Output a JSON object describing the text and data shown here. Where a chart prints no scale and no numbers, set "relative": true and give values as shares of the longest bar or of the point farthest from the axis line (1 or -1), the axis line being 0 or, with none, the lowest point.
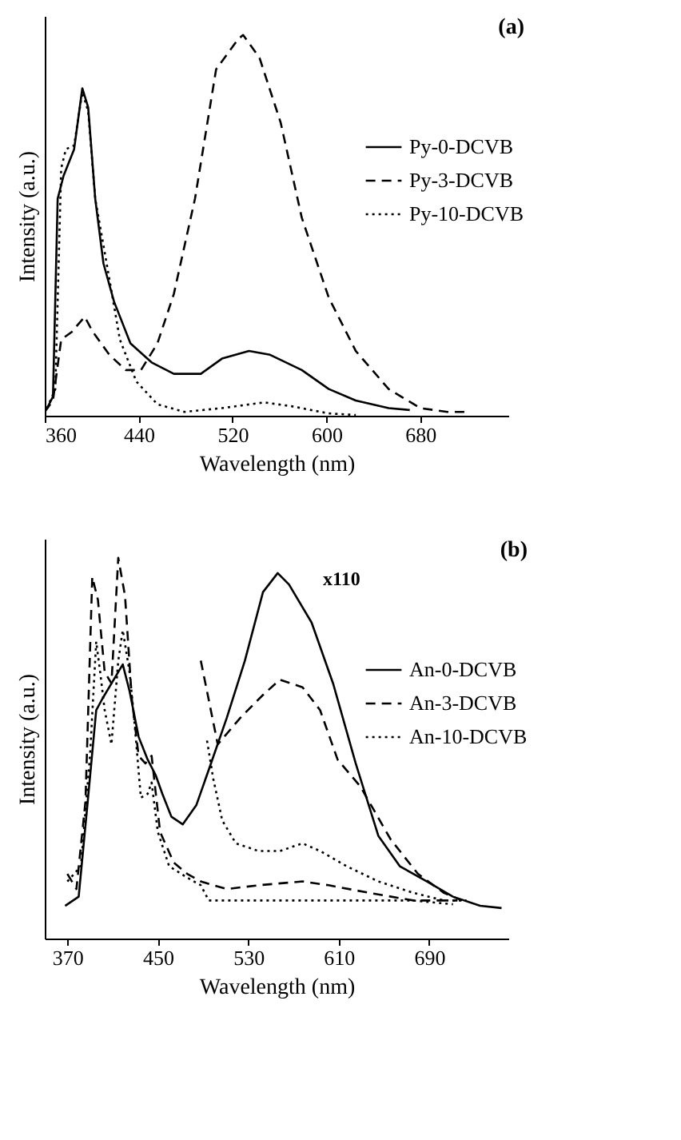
{
  "chart_data": [
    {
      "type": "line",
      "title": "(a)",
      "xlabel": "Wavelength (nm)",
      "ylabel": "Intensity (a.u.)",
      "relative": true,
      "xlim": [
        360,
        755
      ],
      "xticks": [
        360,
        440,
        520,
        600,
        680
      ],
      "grid": false,
      "legend": "right",
      "marker": "none",
      "series": [
        {
          "name": "Py-0-DCVB",
          "color": "#000000",
          "line_style": "solid",
          "x": [
            362,
            367,
            371,
            376,
            385,
            392,
            397,
            403,
            410,
            419,
            433,
            451,
            470,
            493,
            511,
            534,
            552,
            579,
            602,
            625,
            653,
            671
          ],
          "values": [
            0.02,
            0.05,
            0.57,
            0.63,
            0.7,
            0.86,
            0.81,
            0.57,
            0.4,
            0.3,
            0.19,
            0.14,
            0.11,
            0.11,
            0.15,
            0.17,
            0.16,
            0.12,
            0.07,
            0.04,
            0.02,
            0.015
          ]
        },
        {
          "name": "Py-3-DCVB",
          "color": "#000000",
          "line_style": "dashed",
          "x": [
            360,
            367,
            374,
            383,
            394,
            401,
            415,
            429,
            442,
            456,
            470,
            488,
            506,
            525,
            529,
            543,
            561,
            579,
            602,
            625,
            653,
            680,
            703,
            721
          ],
          "values": [
            0.01,
            0.04,
            0.2,
            0.22,
            0.26,
            0.22,
            0.16,
            0.12,
            0.12,
            0.19,
            0.32,
            0.57,
            0.91,
            0.99,
            1.0,
            0.94,
            0.77,
            0.52,
            0.31,
            0.17,
            0.07,
            0.02,
            0.01,
            0.01
          ]
        },
        {
          "name": "Py-10-DCVB",
          "color": "#000000",
          "line_style": "dotted",
          "x": [
            362,
            369,
            374,
            378,
            385,
            392,
            397,
            403,
            415,
            424,
            438,
            456,
            479,
            511,
            547,
            570,
            602,
            625
          ],
          "values": [
            0.02,
            0.07,
            0.65,
            0.7,
            0.71,
            0.85,
            0.8,
            0.57,
            0.36,
            0.2,
            0.09,
            0.03,
            0.01,
            0.02,
            0.035,
            0.025,
            0.006,
            0.002
          ]
        }
      ]
    },
    {
      "type": "line",
      "title": "(b)",
      "xlabel": "Wavelength (nm)",
      "ylabel": "Intensity (a.u.)",
      "relative": true,
      "xlim": [
        350,
        760
      ],
      "xticks": [
        370,
        450,
        530,
        610,
        690
      ],
      "grid": false,
      "legend": "right",
      "marker": "none",
      "annotations": [
        "x110"
      ],
      "series": [
        {
          "name": "An-0-DCVB",
          "color": "#000000",
          "line_style": "solid",
          "x": [
            368,
            380,
            388,
            395.5,
            401,
            409,
            419,
            425,
            433,
            441,
            448,
            454,
            462,
            472,
            484,
            497,
            511,
            527,
            543,
            556,
            566,
            586,
            605,
            625,
            645,
            664,
            688,
            711,
            735,
            754
          ],
          "values": [
            0.086,
            0.11,
            0.36,
            0.6,
            0.63,
            0.67,
            0.72,
            0.65,
            0.53,
            0.47,
            0.43,
            0.38,
            0.32,
            0.3,
            0.35,
            0.46,
            0.58,
            0.73,
            0.91,
            0.96,
            0.93,
            0.83,
            0.67,
            0.46,
            0.27,
            0.19,
            0.15,
            0.11,
            0.086,
            0.08
          ]
        },
        {
          "name": "An-3-DCVB",
          "color": "#000000",
          "line_style": "dashed",
          "x": [
            370,
            378,
            386,
            392,
            397,
            403,
            409,
            415,
            421,
            427,
            433,
            439,
            444.5,
            452,
            464,
            476,
            488,
            499,
            511,
            539,
            578,
            601,
            637,
            676,
            715
          ],
          "values": [
            0.17,
            0.13,
            0.36,
            0.95,
            0.89,
            0.7,
            0.67,
            1.0,
            0.9,
            0.63,
            0.48,
            0.46,
            0.48,
            0.28,
            0.2,
            0.17,
            0.15,
            0.14,
            0.13,
            0.14,
            0.15,
            0.14,
            0.12,
            0.1,
            0.1
          ]
        },
        {
          "name": "An-10-DCVB",
          "color": "#000000",
          "line_style": "dotted",
          "x": [
            370,
            382,
            390,
            395.5,
            399,
            403,
            409,
            415,
            419,
            425,
            429,
            435,
            441,
            444.5,
            450,
            460,
            476,
            488,
            495,
            539,
            617,
            676,
            711
          ],
          "values": [
            0.15,
            0.19,
            0.48,
            0.78,
            0.7,
            0.6,
            0.51,
            0.73,
            0.81,
            0.7,
            0.58,
            0.37,
            0.38,
            0.41,
            0.28,
            0.19,
            0.16,
            0.14,
            0.1,
            0.1,
            0.1,
            0.1,
            0.09
          ]
        },
        {
          "color": "#000000",
          "line_style": "dashed",
          "x": [
            488,
            503,
            523,
            543,
            558,
            578,
            593.5,
            609,
            629,
            656,
            680,
            703,
            719
          ],
          "values": [
            0.73,
            0.51,
            0.58,
            0.64,
            0.68,
            0.66,
            0.6,
            0.47,
            0.4,
            0.26,
            0.17,
            0.12,
            0.1
          ]
        },
        {
          "color": "#000000",
          "line_style": "dotted",
          "x": [
            493.5,
            499,
            507,
            519,
            539,
            558,
            578,
            593.5,
            617,
            645,
            676,
            703,
            723
          ],
          "values": [
            0.52,
            0.42,
            0.31,
            0.25,
            0.23,
            0.23,
            0.25,
            0.23,
            0.19,
            0.15,
            0.12,
            0.1,
            0.1
          ]
        }
      ]
    }
  ]
}
